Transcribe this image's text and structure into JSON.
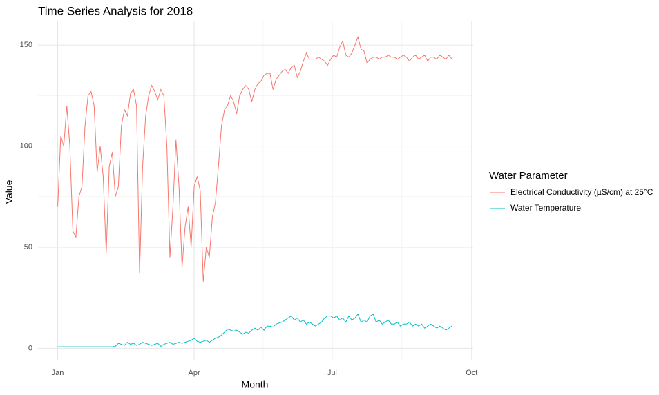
{
  "chart_data": {
    "type": "line",
    "title": "Time Series Analysis for 2018",
    "x_label": "Month",
    "y_label": "Value",
    "legend_title": "Water Parameter",
    "legend_position": "right",
    "grid": true,
    "xlim": [
      -12,
      275
    ],
    "xticks": [
      {
        "value": 1,
        "label": "Jan"
      },
      {
        "value": 91,
        "label": "Apr"
      },
      {
        "value": 182,
        "label": "Jul"
      },
      {
        "value": 274,
        "label": "Oct"
      }
    ],
    "ylim": [
      -6,
      162
    ],
    "yticks": [
      0,
      50,
      100,
      150
    ],
    "x": [
      1,
      3,
      5,
      7,
      9,
      11,
      13,
      15,
      17,
      19,
      21,
      23,
      25,
      27,
      29,
      31,
      33,
      35,
      37,
      39,
      41,
      43,
      45,
      47,
      49,
      51,
      53,
      55,
      57,
      59,
      61,
      63,
      65,
      67,
      69,
      71,
      73,
      75,
      77,
      79,
      81,
      83,
      85,
      87,
      89,
      91,
      93,
      95,
      97,
      99,
      101,
      103,
      105,
      107,
      109,
      111,
      113,
      115,
      117,
      119,
      121,
      123,
      125,
      127,
      129,
      131,
      133,
      135,
      137,
      139,
      141,
      143,
      145,
      147,
      149,
      151,
      153,
      155,
      157,
      159,
      161,
      163,
      165,
      167,
      169,
      171,
      173,
      175,
      177,
      179,
      181,
      183,
      185,
      187,
      189,
      191,
      193,
      195,
      197,
      199,
      201,
      203,
      205,
      207,
      209,
      211,
      213,
      215,
      217,
      219,
      221,
      223,
      225,
      227,
      229,
      231,
      233,
      235,
      237,
      239,
      241,
      243,
      245,
      247,
      249,
      251,
      253,
      255,
      257,
      259,
      261
    ],
    "series": [
      {
        "name": "Electrical Conductivity (µS/cm) at 25°C",
        "color": "#F8766D",
        "values": [
          70,
          105,
          100,
          120,
          100,
          58,
          55,
          75,
          80,
          110,
          125,
          127,
          120,
          87,
          100,
          85,
          47,
          90,
          97,
          75,
          80,
          110,
          118,
          115,
          126,
          128,
          120,
          37,
          90,
          115,
          125,
          130,
          127,
          123,
          128,
          125,
          100,
          45,
          70,
          103,
          80,
          40,
          60,
          70,
          50,
          80,
          85,
          78,
          33,
          50,
          45,
          65,
          72,
          90,
          110,
          118,
          120,
          125,
          122,
          116,
          125,
          128,
          130,
          128,
          122,
          128,
          131,
          132,
          135,
          136,
          136,
          128,
          133,
          135,
          137,
          138,
          136,
          139,
          140,
          134,
          137,
          142,
          146,
          143,
          143,
          143,
          144,
          143,
          142,
          140,
          143,
          145,
          144,
          149,
          152,
          145,
          144,
          146,
          150,
          154,
          148,
          147,
          141,
          143,
          144,
          144,
          143,
          144,
          144,
          145,
          144,
          144,
          143,
          144,
          145,
          144,
          142,
          144,
          145,
          143,
          144,
          145,
          142,
          144,
          144,
          143,
          145,
          144,
          143,
          145,
          143
        ]
      },
      {
        "name": "Water Temperature",
        "color": "#00BFC4",
        "values": [
          0.8,
          0.8,
          0.8,
          0.8,
          0.8,
          0.8,
          0.8,
          0.8,
          0.8,
          0.8,
          0.8,
          0.8,
          0.8,
          0.8,
          0.8,
          0.8,
          0.8,
          0.8,
          0.8,
          1,
          2.5,
          2,
          1.5,
          3,
          2,
          2.5,
          1.5,
          2,
          3,
          2.5,
          2,
          1.5,
          2,
          2.5,
          1,
          2,
          2.5,
          3,
          2,
          2.5,
          3,
          2.5,
          3,
          3.5,
          4,
          5,
          3.5,
          3,
          3.5,
          4,
          3,
          4,
          5,
          5.5,
          6.5,
          8,
          9.5,
          9,
          8.5,
          9,
          8,
          7,
          8,
          7.5,
          9,
          10,
          9,
          10.5,
          9,
          11,
          11,
          10.5,
          12,
          12.5,
          13,
          14,
          15,
          16,
          14,
          15,
          13,
          14,
          12,
          13,
          12,
          11,
          12,
          13,
          15,
          16,
          16,
          15,
          16,
          14,
          15,
          13,
          16,
          14,
          15,
          17,
          13,
          14,
          13,
          16,
          17,
          13,
          14,
          12,
          13,
          14,
          12,
          12,
          13,
          11,
          12,
          12,
          13,
          11,
          12,
          11,
          12,
          10,
          11,
          12,
          11,
          10,
          11,
          10,
          9,
          10,
          11
        ]
      }
    ]
  }
}
